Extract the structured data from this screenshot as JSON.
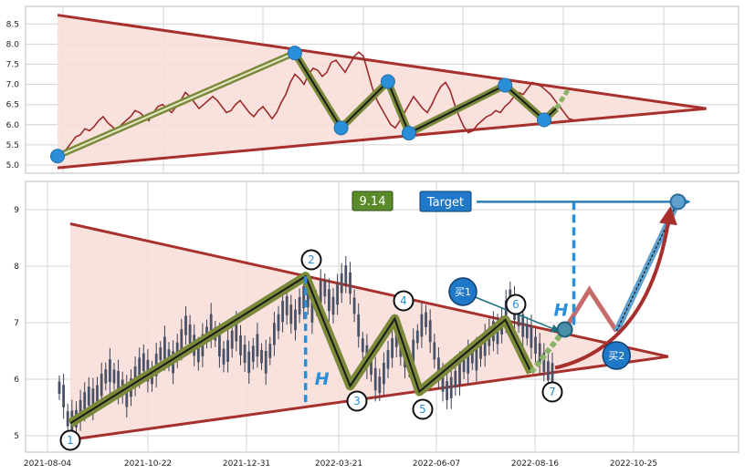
{
  "chart_data": [
    {
      "type": "line",
      "panel": "top",
      "ylim": [
        4.8,
        8.8
      ],
      "yticks": [
        "5.0",
        "5.5",
        "6.0",
        "6.5",
        "7.0",
        "7.5",
        "8.0",
        "8.5"
      ],
      "triangle_upper": [
        [
          0,
          8.72
        ],
        [
          1.08,
          6.4
        ]
      ],
      "triangle_lower": [
        [
          0,
          4.93
        ],
        [
          1.08,
          6.4
        ]
      ],
      "wave_points": [
        [
          0,
          5.22
        ],
        [
          0.395,
          7.78
        ],
        [
          0.472,
          5.92
        ],
        [
          0.55,
          7.07
        ],
        [
          0.585,
          5.79
        ],
        [
          0.745,
          6.98
        ],
        [
          0.81,
          6.12
        ],
        [
          0.83,
          6.4
        ],
        [
          0.85,
          6.87
        ]
      ],
      "wave_markers": [
        [
          0,
          5.22
        ],
        [
          0.395,
          7.78
        ],
        [
          0.472,
          5.92
        ],
        [
          0.55,
          7.07
        ],
        [
          0.585,
          5.79
        ],
        [
          0.745,
          6.98
        ],
        [
          0.81,
          6.12
        ]
      ],
      "projection": [
        [
          0,
          5.22
        ],
        [
          0.385,
          7.72
        ]
      ],
      "price_series": [
        5.25,
        5.3,
        5.4,
        5.55,
        5.7,
        5.75,
        5.9,
        5.85,
        5.95,
        6.1,
        6.2,
        6.05,
        5.95,
        5.85,
        6.0,
        6.1,
        6.2,
        6.35,
        6.3,
        6.2,
        6.1,
        6.3,
        6.45,
        6.5,
        6.4,
        6.3,
        6.45,
        6.6,
        6.8,
        6.7,
        6.55,
        6.4,
        6.5,
        6.6,
        6.7,
        6.6,
        6.45,
        6.3,
        6.35,
        6.5,
        6.6,
        6.45,
        6.3,
        6.2,
        6.35,
        6.45,
        6.3,
        6.15,
        6.3,
        6.55,
        6.75,
        7.05,
        7.25,
        7.15,
        7.0,
        7.25,
        7.4,
        7.35,
        7.2,
        7.3,
        7.55,
        7.6,
        7.45,
        7.3,
        7.5,
        7.7,
        7.8,
        7.7,
        7.3,
        6.9,
        6.6,
        6.4,
        6.2,
        6.0,
        5.92,
        6.1,
        6.3,
        6.5,
        6.7,
        6.55,
        6.4,
        6.3,
        6.5,
        6.75,
        6.95,
        7.05,
        6.85,
        6.5,
        6.2,
        5.95,
        5.8,
        5.85,
        6.0,
        6.1,
        6.2,
        6.25,
        6.35,
        6.3,
        6.45,
        6.55,
        6.7,
        6.8,
        6.75,
        6.9,
        7.05,
        7.0,
        6.95,
        6.85,
        6.75,
        6.6,
        6.45,
        6.3,
        6.15,
        6.12
      ]
    },
    {
      "type": "line",
      "panel": "bottom",
      "ylim": [
        4.7,
        9.5
      ],
      "yticks": [
        "5",
        "6",
        "7",
        "8",
        "9"
      ],
      "xticks": [
        "2021-08-04",
        "2021-10-22",
        "2021-12-31",
        "2022-03-21",
        "2022-06-07",
        "2022-08-16",
        "2022-10-25"
      ],
      "triangle_upper": [
        [
          0,
          8.75
        ],
        [
          0.925,
          6.4
        ]
      ],
      "triangle_lower": [
        [
          0,
          4.93
        ],
        [
          0.925,
          6.4
        ]
      ],
      "wave_points": [
        [
          0,
          5.22
        ],
        [
          0.364,
          7.82
        ],
        [
          0.433,
          5.88
        ],
        [
          0.502,
          7.07
        ],
        [
          0.54,
          5.78
        ],
        [
          0.673,
          7.05
        ],
        [
          0.713,
          6.12
        ],
        [
          0.765,
          6.88
        ],
        [
          0.803,
          7.58
        ],
        [
          0.845,
          6.85
        ],
        [
          0.94,
          9.14
        ]
      ],
      "wave_labels": [
        "1",
        "2",
        "3",
        "4",
        "5",
        "6",
        "7"
      ],
      "target_value": "9.14",
      "target_label": "Target",
      "buy1_label": "买1",
      "buy2_label": "买2",
      "h_label": "H",
      "price_series": [
        5.85,
        5.7,
        5.3,
        5.25,
        5.3,
        5.45,
        5.6,
        5.7,
        5.65,
        5.75,
        5.9,
        6.05,
        6.15,
        6.05,
        5.95,
        5.85,
        5.7,
        5.85,
        6.05,
        6.2,
        6.3,
        6.15,
        6.05,
        6.25,
        6.45,
        6.55,
        6.4,
        6.3,
        6.5,
        6.7,
        6.95,
        6.8,
        6.6,
        6.45,
        6.6,
        6.8,
        6.95,
        6.8,
        6.6,
        6.4,
        6.5,
        6.7,
        6.85,
        6.6,
        6.45,
        6.3,
        6.45,
        6.6,
        6.4,
        6.3,
        6.5,
        6.8,
        7.0,
        7.2,
        7.3,
        7.15,
        7.05,
        7.3,
        7.45,
        7.4,
        7.2,
        7.35,
        7.55,
        7.6,
        7.4,
        7.3,
        7.5,
        7.7,
        7.85,
        7.7,
        7.3,
        6.95,
        6.6,
        6.4,
        6.2,
        6.0,
        5.9,
        6.1,
        6.35,
        6.55,
        6.75,
        6.55,
        6.4,
        6.3,
        6.5,
        6.75,
        6.95,
        7.05,
        6.85,
        6.5,
        6.2,
        5.95,
        5.8,
        5.85,
        6.0,
        6.1,
        6.25,
        6.3,
        6.4,
        6.35,
        6.5,
        6.6,
        6.75,
        6.85,
        6.8,
        6.95,
        7.2,
        7.45,
        7.25,
        7.05,
        6.95,
        6.85,
        6.75,
        6.6,
        6.45,
        6.3,
        6.15,
        6.1
      ]
    }
  ]
}
